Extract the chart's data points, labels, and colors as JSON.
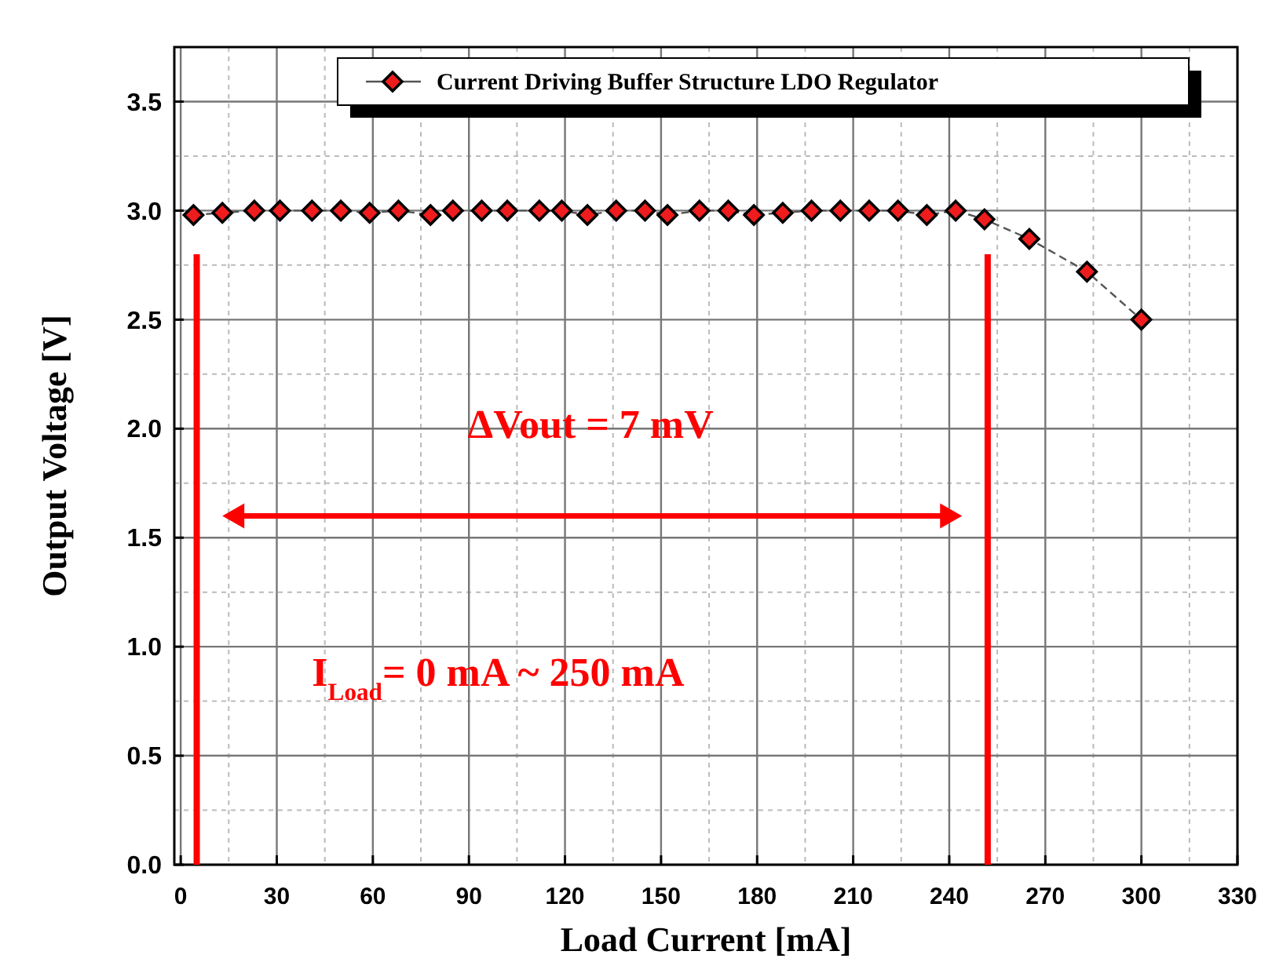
{
  "chart_data": {
    "type": "line",
    "xlabel": "Load Current [mA]",
    "ylabel": "Output Voltage [V]",
    "xlim": [
      -2,
      330
    ],
    "xticks": [
      0,
      30,
      60,
      90,
      120,
      150,
      180,
      210,
      240,
      270,
      300,
      330
    ],
    "ylim": [
      0,
      3.75
    ],
    "yticks": [
      {
        "value": 0,
        "label": "0.0"
      },
      {
        "value": 0.5,
        "label": "0.5"
      },
      {
        "value": 1,
        "label": "1.0"
      },
      {
        "value": 1.5,
        "label": "1.5"
      },
      {
        "value": 2,
        "label": "2.0"
      },
      {
        "value": 2.5,
        "label": "2.5"
      },
      {
        "value": 3,
        "label": "3.0"
      },
      {
        "value": 3.5,
        "label": "3.5"
      }
    ],
    "grid": true,
    "legend": "top",
    "marker": "diamond",
    "line_style": "dashed",
    "series": [
      {
        "name": "Current Driving Buffer Structure LDO Regulator",
        "color": "#ee1c1c",
        "x": [
          4,
          13,
          23,
          31,
          41,
          50,
          59,
          68,
          78,
          85,
          94,
          102,
          112,
          119,
          127,
          136,
          145,
          152,
          162,
          171,
          179,
          188,
          197,
          206,
          215,
          224,
          233,
          242,
          251,
          265,
          283,
          300
        ],
        "values": [
          2.98,
          2.99,
          3.0,
          3.0,
          3.0,
          3.0,
          2.99,
          3.0,
          2.98,
          3.0,
          3.0,
          3.0,
          3.0,
          3.0,
          2.98,
          3.0,
          3.0,
          2.98,
          3.0,
          3.0,
          2.98,
          2.99,
          3.0,
          3.0,
          3.0,
          3.0,
          2.98,
          3.0,
          2.96,
          2.87,
          2.72,
          2.5
        ]
      }
    ],
    "ref_lines": [
      {
        "axis": "x",
        "value": 5,
        "color": "#ff0000"
      },
      {
        "axis": "x",
        "value": 252,
        "color": "#ff0000"
      }
    ],
    "annotations": [
      "ΔVout = 7 mV",
      "I$_{Load}$= 0 mA ~ 250 mA"
    ]
  }
}
